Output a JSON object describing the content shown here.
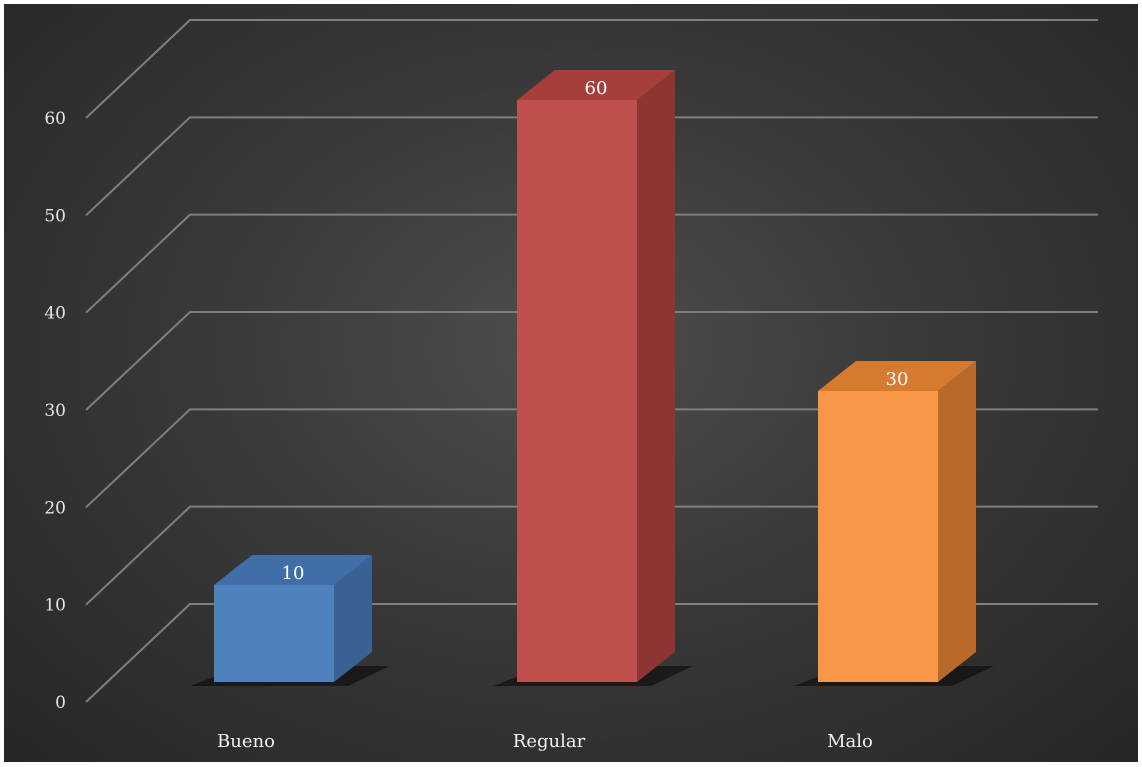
{
  "chart_data": {
    "type": "bar",
    "style": "3d-column",
    "categories": [
      "Bueno",
      "Regular",
      "Malo"
    ],
    "values": [
      10,
      60,
      30
    ],
    "data_labels": [
      "10",
      "60",
      "30"
    ],
    "colors": [
      "#4f81bd",
      "#c0504d",
      "#f79646"
    ],
    "side_colors": [
      "#3a6194",
      "#8e3432",
      "#b9692a"
    ],
    "top_colors": [
      "#3f6ea8",
      "#a63f3c",
      "#d67a30"
    ],
    "y_ticks": [
      "0",
      "10",
      "20",
      "30",
      "40",
      "50",
      "60"
    ],
    "ylim": [
      0,
      60
    ],
    "grid": true,
    "background": "#3a3a3a",
    "legend": "none"
  }
}
